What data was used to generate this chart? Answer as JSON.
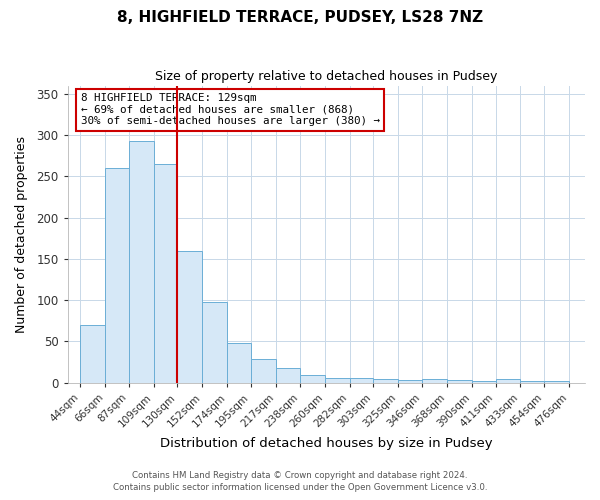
{
  "title": "8, HIGHFIELD TERRACE, PUDSEY, LS28 7NZ",
  "subtitle": "Size of property relative to detached houses in Pudsey",
  "xlabel": "Distribution of detached houses by size in Pudsey",
  "ylabel": "Number of detached properties",
  "bar_left_edges": [
    44,
    66,
    87,
    109,
    130,
    152,
    174,
    195,
    217,
    238,
    260,
    282,
    303,
    325,
    346,
    368,
    390,
    411,
    433,
    454
  ],
  "bar_widths": [
    22,
    21,
    22,
    21,
    22,
    22,
    21,
    22,
    21,
    22,
    22,
    21,
    22,
    21,
    22,
    22,
    21,
    22,
    21,
    22
  ],
  "bar_heights": [
    70,
    260,
    293,
    265,
    160,
    98,
    48,
    29,
    18,
    10,
    6,
    6,
    5,
    3,
    5,
    3,
    2,
    5,
    2,
    2
  ],
  "tick_labels": [
    "44sqm",
    "66sqm",
    "87sqm",
    "109sqm",
    "130sqm",
    "152sqm",
    "174sqm",
    "195sqm",
    "217sqm",
    "238sqm",
    "260sqm",
    "282sqm",
    "303sqm",
    "325sqm",
    "346sqm",
    "368sqm",
    "390sqm",
    "411sqm",
    "433sqm",
    "454sqm",
    "476sqm"
  ],
  "tick_positions": [
    44,
    66,
    87,
    109,
    130,
    152,
    174,
    195,
    217,
    238,
    260,
    282,
    303,
    325,
    346,
    368,
    390,
    411,
    433,
    454,
    476
  ],
  "vline_x": 130,
  "vline_color": "#cc0000",
  "bar_facecolor": "#d6e8f7",
  "bar_edgecolor": "#6baed6",
  "ylim": [
    0,
    360
  ],
  "xlim": [
    33,
    490
  ],
  "yticks": [
    0,
    50,
    100,
    150,
    200,
    250,
    300,
    350
  ],
  "annotation_title": "8 HIGHFIELD TERRACE: 129sqm",
  "annotation_line1": "← 69% of detached houses are smaller (868)",
  "annotation_line2": "30% of semi-detached houses are larger (380) →",
  "annotation_box_color": "#cc0000",
  "footnote1": "Contains HM Land Registry data © Crown copyright and database right 2024.",
  "footnote2": "Contains public sector information licensed under the Open Government Licence v3.0.",
  "grid_color": "#c8d8e8",
  "plot_bg_color": "#ffffff",
  "fig_bg_color": "#ffffff"
}
